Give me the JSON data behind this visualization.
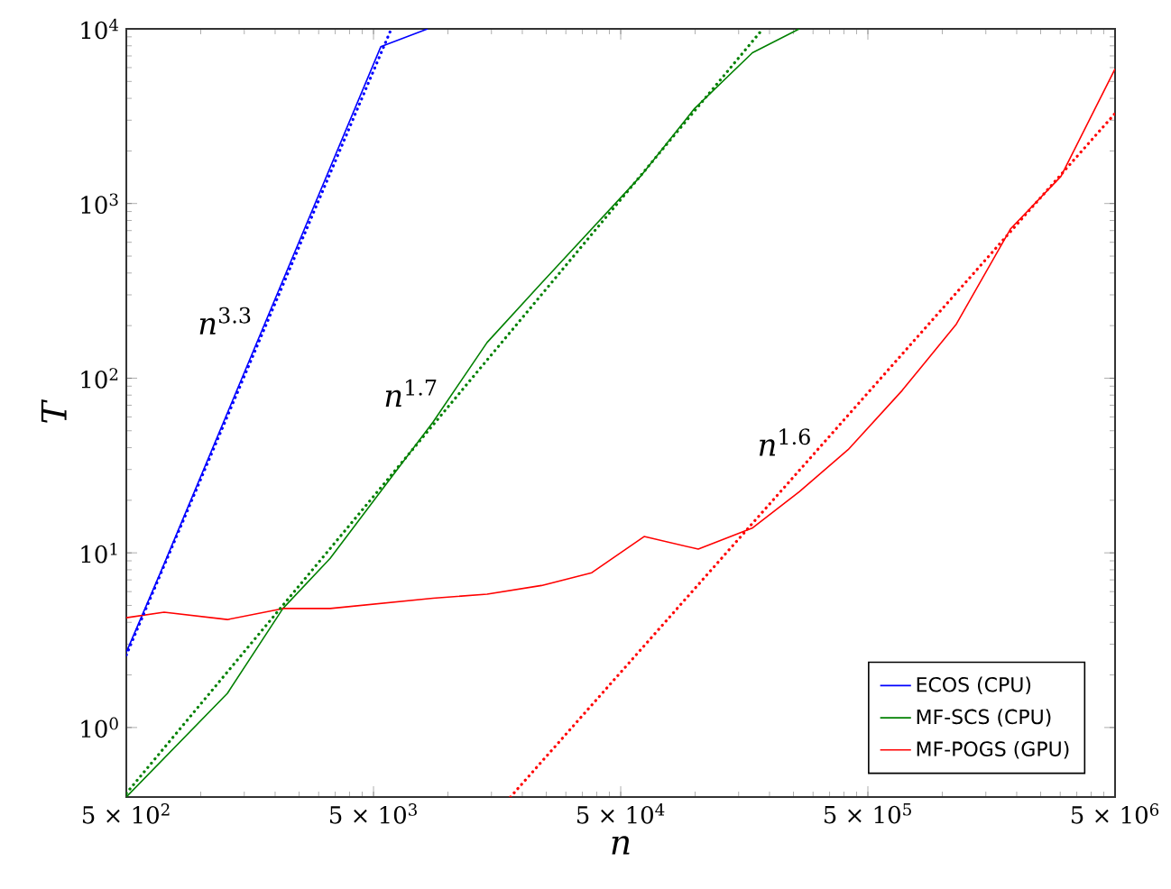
{
  "chart_data": {
    "type": "line",
    "xlabel": "n",
    "ylabel": "T",
    "log": "xy",
    "xlim": [
      500,
      5000000
    ],
    "ylim": [
      0.4,
      10000
    ],
    "xticks": [
      {
        "value": 500,
        "label": "5 × 10$^{2}$"
      },
      {
        "value": 5000,
        "label": "5 × 10$^{3}$"
      },
      {
        "value": 50000,
        "label": "5 × 10$^{4}$"
      },
      {
        "value": 500000,
        "label": "5 × 10$^{5}$"
      },
      {
        "value": 5000000,
        "label": "5 × 10$^{6}$"
      }
    ],
    "yticks": [
      {
        "value": 1,
        "label": "10$^{0}$"
      },
      {
        "value": 10,
        "label": "10$^{1}$"
      },
      {
        "value": 100,
        "label": "10$^{2}$"
      },
      {
        "value": 1000,
        "label": "10$^{3}$"
      },
      {
        "value": 10000,
        "label": "10$^{4}$"
      }
    ],
    "grid": false,
    "legend": "bottom right",
    "marker": "none",
    "series": [
      {
        "name": "ECOS (CPU)",
        "color": "#0000ff",
        "line_style": "solid",
        "x": [
          500,
          700,
          5350,
          8280
        ],
        "values": [
          2.7,
          8.2,
          7900,
          10000
        ]
      },
      {
        "name": "MF-SCS (CPU)",
        "color": "#008000",
        "line_style": "solid",
        "x": [
          500,
          1282,
          2150,
          3340,
          8700,
          14400,
          23900,
          60100,
          99500,
          170600,
          264000
        ],
        "values": [
          0.4,
          1.57,
          4.8,
          9.3,
          56,
          160,
          350,
          1430,
          3500,
          7300,
          10000
        ]
      },
      {
        "name": "MF-POGS (GPU)",
        "color": "#ff0000",
        "line_style": "solid",
        "x": [
          500,
          711,
          1282,
          2150,
          3340,
          8700,
          14400,
          23900,
          38200,
          62200,
          103000,
          171000,
          264000,
          416000,
          688000,
          1140000,
          1890000,
          3020000,
          5000000
        ],
        "values": [
          4.25,
          4.57,
          4.15,
          4.8,
          4.8,
          5.5,
          5.8,
          6.5,
          7.7,
          12.4,
          10.5,
          13.9,
          22.4,
          39,
          85,
          204,
          717,
          1430,
          5900
        ]
      },
      {
        "color": "#0000ff",
        "line_style": "dotted",
        "x": [
          500,
          5900
        ],
        "values": [
          2.6,
          10000
        ]
      },
      {
        "color": "#008000",
        "line_style": "dotted",
        "x": [
          500,
          188000
        ],
        "values": [
          0.42,
          10000
        ]
      },
      {
        "color": "#ff0000",
        "line_style": "dotted",
        "x": [
          17900,
          5000000
        ],
        "values": [
          0.4,
          3280
        ]
      }
    ],
    "annotations": [
      "*n*$^{3.3}$",
      "*n*$^{1.7}$",
      "*n*$^{1.6}$"
    ]
  }
}
